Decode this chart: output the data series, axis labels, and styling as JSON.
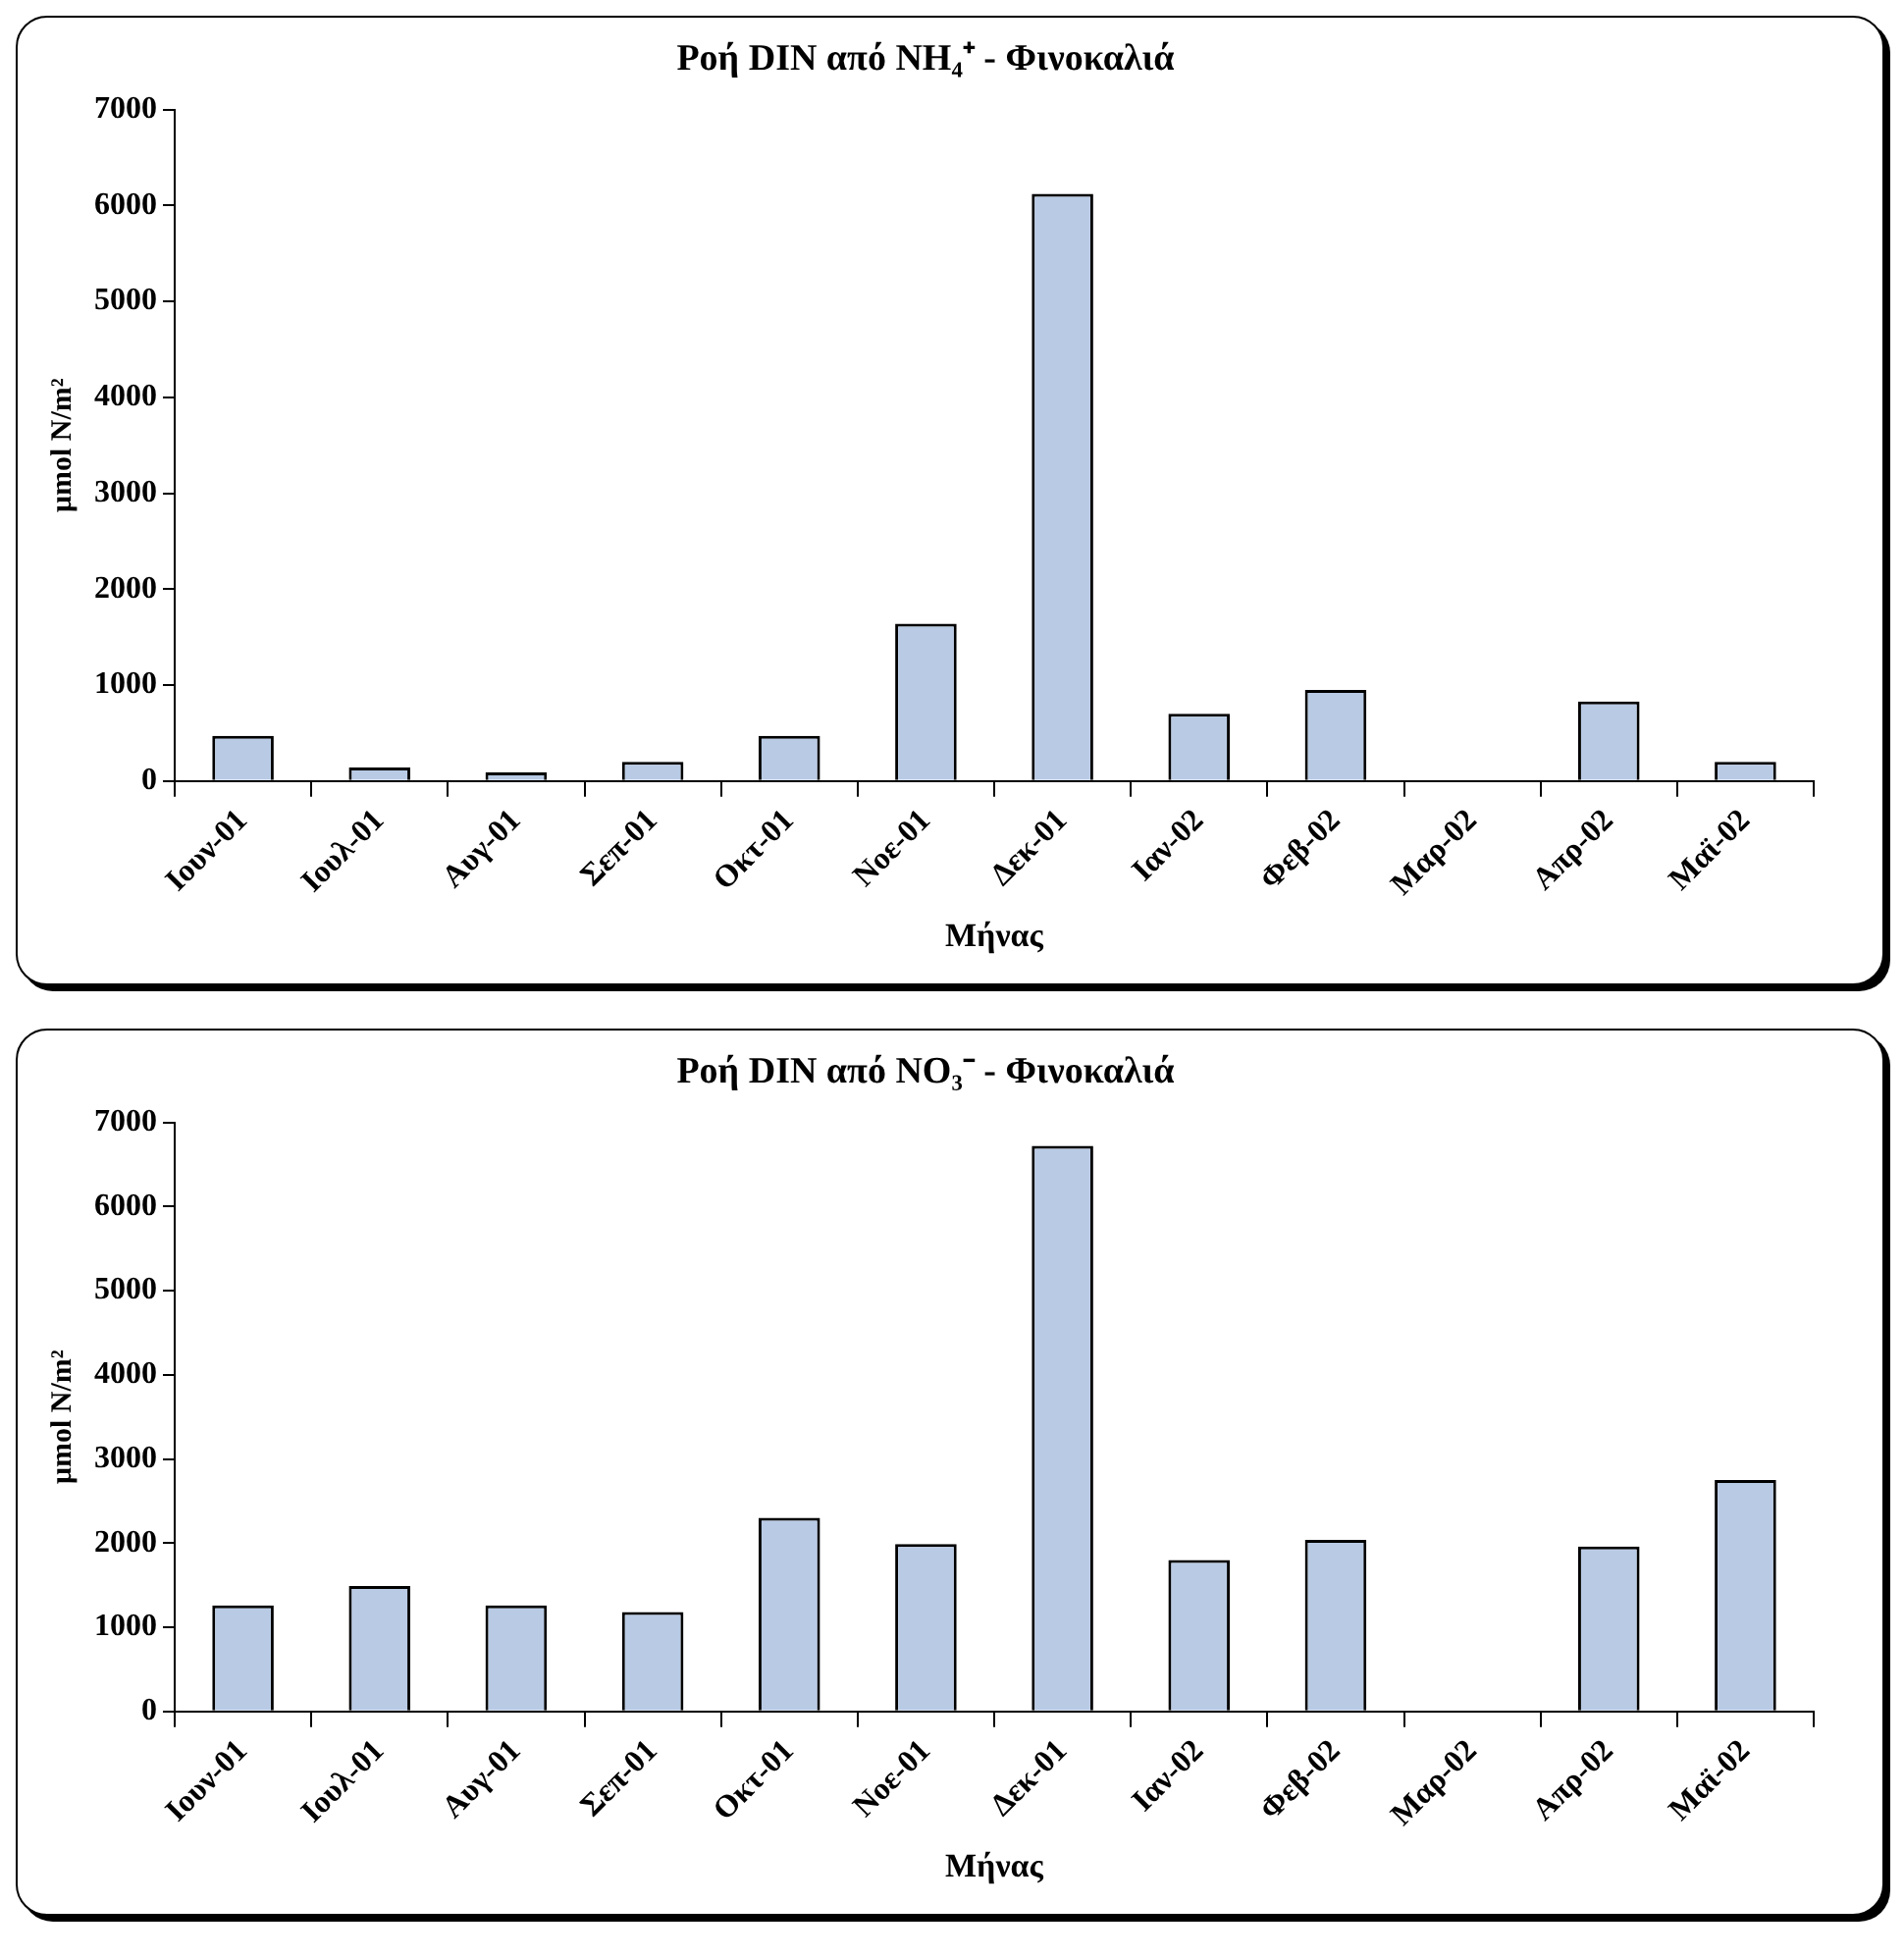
{
  "chart_data": [
    {
      "type": "bar",
      "title": "Ροή DIN από NH₄⁺ - Φινοκαλιά",
      "xlabel": "Μήνας",
      "ylabel": "μmol N/m²",
      "categories": [
        "Ιουν-01",
        "Ιουλ-01",
        "Αυγ-01",
        "Σεπ-01",
        "Οκτ-01",
        "Νοε-01",
        "Δεκ-01",
        "Ιαν-02",
        "Φεβ-02",
        "Μαρ-02",
        "Απρ-02",
        "Μαϊ-02"
      ],
      "values": [
        470,
        140,
        90,
        200,
        470,
        1640,
        6120,
        700,
        950,
        null,
        830,
        200
      ],
      "color": "#b8cae4",
      "ylim": [
        0,
        7000
      ],
      "yticks": [
        0,
        1000,
        2000,
        3000,
        4000,
        5000,
        6000,
        7000
      ],
      "legend": false
    },
    {
      "type": "bar",
      "title": "Ροή DIN από NO₃⁻ - Φινοκαλιά",
      "xlabel": "Μήνας",
      "ylabel": "μmol N/m²",
      "categories": [
        "Ιουν-01",
        "Ιουλ-01",
        "Αυγ-01",
        "Σεπ-01",
        "Οκτ-01",
        "Νοε-01",
        "Δεκ-01",
        "Ιαν-02",
        "Φεβ-02",
        "Μαρ-02",
        "Απρ-02",
        "Μαϊ-02"
      ],
      "values": [
        1260,
        1490,
        1260,
        1180,
        2300,
        1990,
        6720,
        1800,
        2040,
        null,
        1960,
        2750
      ],
      "color": "#b8cae4",
      "ylim": [
        0,
        7000
      ],
      "yticks": [
        0,
        1000,
        2000,
        3000,
        4000,
        5000,
        6000,
        7000
      ],
      "legend": false
    }
  ]
}
